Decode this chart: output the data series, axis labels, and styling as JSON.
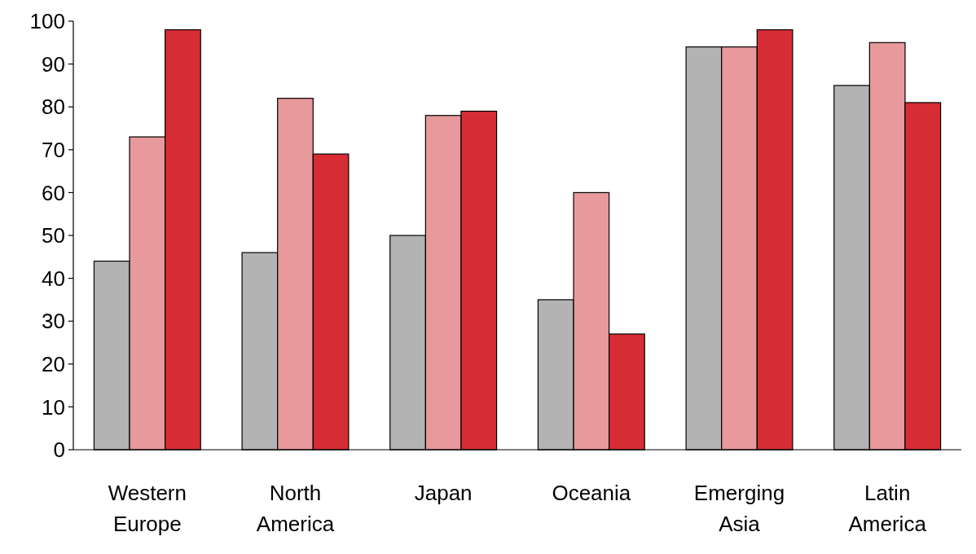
{
  "chart_data": {
    "type": "bar",
    "categories": [
      "Western Europe",
      "North America",
      "Japan",
      "Oceania",
      "Emerging Asia",
      "Latin America"
    ],
    "series": [
      {
        "color": "#b3b3b3",
        "values": [
          44,
          46,
          50,
          35,
          94,
          85
        ]
      },
      {
        "color": "#e8999b",
        "values": [
          73,
          82,
          78,
          60,
          94,
          95
        ]
      },
      {
        "color": "#d62d35",
        "values": [
          98,
          69,
          79,
          27,
          98,
          81
        ]
      }
    ],
    "ylim": [
      0,
      100
    ],
    "yticks": [
      0,
      10,
      20,
      30,
      40,
      50,
      60,
      70,
      80,
      90,
      100
    ],
    "grid": false
  }
}
